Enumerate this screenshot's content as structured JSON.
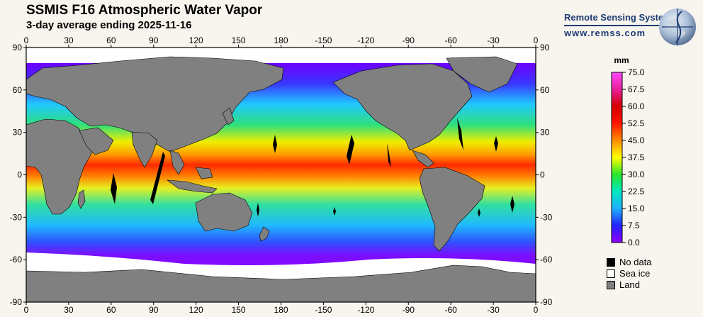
{
  "header": {
    "title": "SSMIS F16 Atmospheric Water Vapor",
    "subtitle": "3-day average ending 2025-11-16"
  },
  "logo": {
    "name": "Remote Sensing Systems",
    "url": "www.remss.com"
  },
  "map": {
    "lon_ticks": [
      "0",
      "30",
      "60",
      "90",
      "120",
      "150",
      "180",
      "-150",
      "-120",
      "-90",
      "-60",
      "-30",
      "0"
    ],
    "lat_ticks": [
      "90",
      "60",
      "30",
      "0",
      "-30",
      "-60",
      "-90"
    ]
  },
  "colorbar": {
    "unit": "mm",
    "ticks": [
      "75.0",
      "67.5",
      "60.0",
      "52.5",
      "45.0",
      "37.5",
      "30.0",
      "22.5",
      "15.0",
      "7.5",
      "0.0"
    ],
    "colors": [
      "#8f00ff",
      "#2222ff",
      "#1fb0ff",
      "#00e8c0",
      "#29e62b",
      "#ffff00",
      "#ff8c00",
      "#ff1400",
      "#d40000",
      "#ff48ff"
    ]
  },
  "legend": {
    "items": [
      {
        "label": "No data",
        "color": "#000000"
      },
      {
        "label": "Sea ice",
        "color": "#ffffff"
      },
      {
        "label": "Land",
        "color": "#808080"
      }
    ]
  }
}
